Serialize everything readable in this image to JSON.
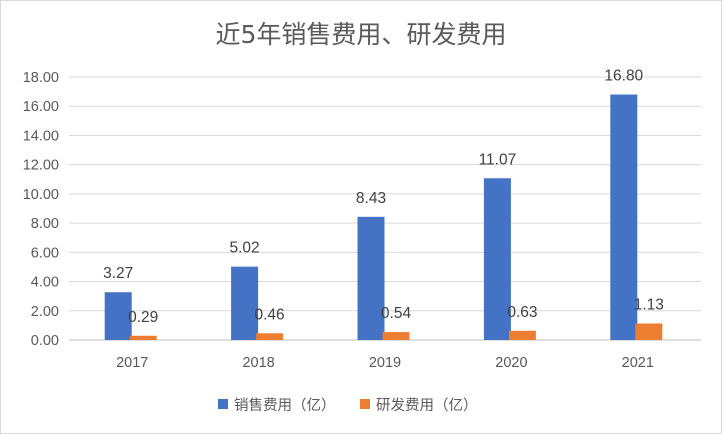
{
  "chart_data": {
    "type": "bar",
    "title": "近5年销售费用、研发费用",
    "categories": [
      "2017",
      "2018",
      "2019",
      "2020",
      "2021"
    ],
    "series": [
      {
        "name": "销售费用（亿）",
        "color": "#4472c4",
        "values": [
          3.27,
          5.02,
          8.43,
          11.07,
          16.8
        ],
        "labels": [
          "3.27",
          "5.02",
          "8.43",
          "11.07",
          "16.80"
        ]
      },
      {
        "name": "研发费用（亿）",
        "color": "#ed7d31",
        "values": [
          0.29,
          0.46,
          0.54,
          0.63,
          1.13
        ],
        "labels": [
          "0.29",
          "0.46",
          "0.54",
          "0.63",
          "1.13"
        ]
      }
    ],
    "xlabel": "",
    "ylabel": "",
    "ylim": [
      0,
      18
    ],
    "y_ticks": [
      "0.00",
      "2.00",
      "4.00",
      "6.00",
      "8.00",
      "10.00",
      "12.00",
      "14.00",
      "16.00",
      "18.00"
    ],
    "grid": true,
    "legend": "bottom"
  }
}
